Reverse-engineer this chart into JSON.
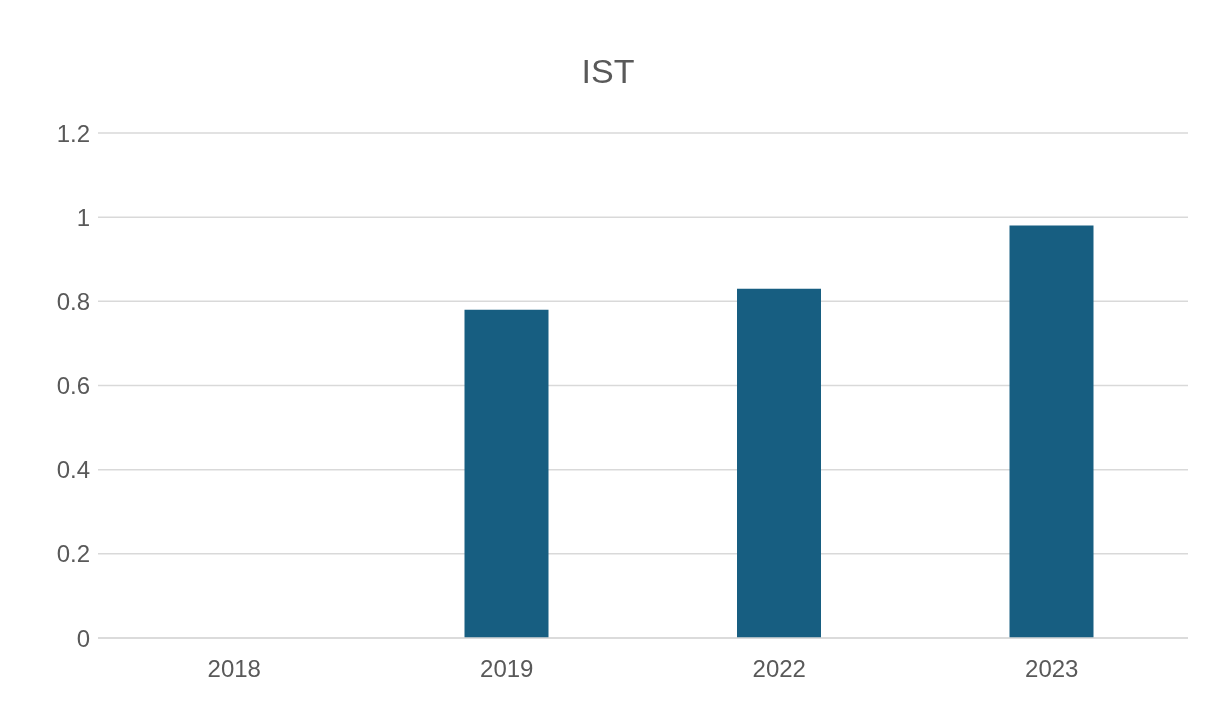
{
  "chart_data": {
    "type": "bar",
    "title": "IST",
    "categories": [
      "2018",
      "2019",
      "2022",
      "2023"
    ],
    "values": [
      0,
      0.78,
      0.83,
      0.98
    ],
    "color": "#175e81",
    "ylim": [
      0,
      1.2
    ],
    "yticks": [
      0,
      0.2,
      0.4,
      0.6,
      0.8,
      1,
      1.2
    ],
    "grid": "y"
  }
}
